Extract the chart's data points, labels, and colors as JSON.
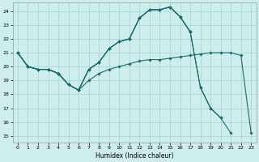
{
  "xlabel": "Humidex (Indice chaleur)",
  "bg_color": "#ceeeed",
  "grid_color": "#aad8d5",
  "line_color": "#1a6b6b",
  "xlim": [
    -0.5,
    23.5
  ],
  "ylim": [
    14.5,
    24.6
  ],
  "xticks": [
    0,
    1,
    2,
    3,
    4,
    5,
    6,
    7,
    8,
    9,
    10,
    11,
    12,
    13,
    14,
    15,
    16,
    17,
    18,
    19,
    20,
    21,
    22,
    23
  ],
  "yticks": [
    15,
    16,
    17,
    18,
    19,
    20,
    21,
    22,
    23,
    24
  ],
  "lines": [
    {
      "x": [
        0,
        1,
        2,
        3,
        4,
        5,
        6,
        7,
        8,
        9,
        10,
        11,
        12,
        13,
        14,
        15,
        16,
        17,
        18,
        19,
        20,
        21,
        22,
        23
      ],
      "y": [
        21,
        20,
        19.8,
        19.8,
        19.5,
        18.7,
        18.3,
        19.0,
        19.5,
        19.8,
        20.0,
        20.2,
        20.4,
        20.5,
        20.5,
        20.6,
        20.7,
        20.8,
        20.9,
        21.0,
        21.0,
        21.0,
        20.8,
        15.2
      ]
    },
    {
      "x": [
        0,
        1,
        2,
        3,
        4,
        5,
        6,
        7,
        8,
        9,
        10,
        11,
        12,
        13,
        14,
        15,
        16,
        17
      ],
      "y": [
        21,
        20,
        19.8,
        19.8,
        19.5,
        18.7,
        18.3,
        19.8,
        20.3,
        21.3,
        21.8,
        22.0,
        23.5,
        24.1,
        24.1,
        24.3,
        23.6,
        22.5
      ]
    },
    {
      "x": [
        0,
        1,
        2,
        3,
        4,
        5,
        6,
        7,
        8,
        9,
        10,
        11,
        12,
        13,
        14,
        15,
        16,
        17,
        18,
        19,
        20
      ],
      "y": [
        21,
        20,
        19.8,
        19.8,
        19.5,
        18.7,
        18.3,
        19.8,
        20.3,
        21.3,
        21.8,
        22.0,
        23.5,
        24.1,
        24.1,
        24.3,
        23.6,
        22.5,
        18.5,
        17.0,
        16.3
      ]
    },
    {
      "x": [
        0,
        1,
        2,
        3,
        4,
        5,
        6,
        7,
        8,
        9,
        10,
        11,
        12,
        13,
        14,
        15,
        16,
        17,
        18,
        19,
        20,
        21
      ],
      "y": [
        21,
        20,
        19.8,
        19.8,
        19.5,
        18.7,
        18.3,
        19.8,
        20.3,
        21.3,
        21.8,
        22.0,
        23.5,
        24.1,
        24.1,
        24.3,
        23.6,
        22.5,
        18.5,
        17.0,
        16.3,
        15.2
      ]
    }
  ]
}
